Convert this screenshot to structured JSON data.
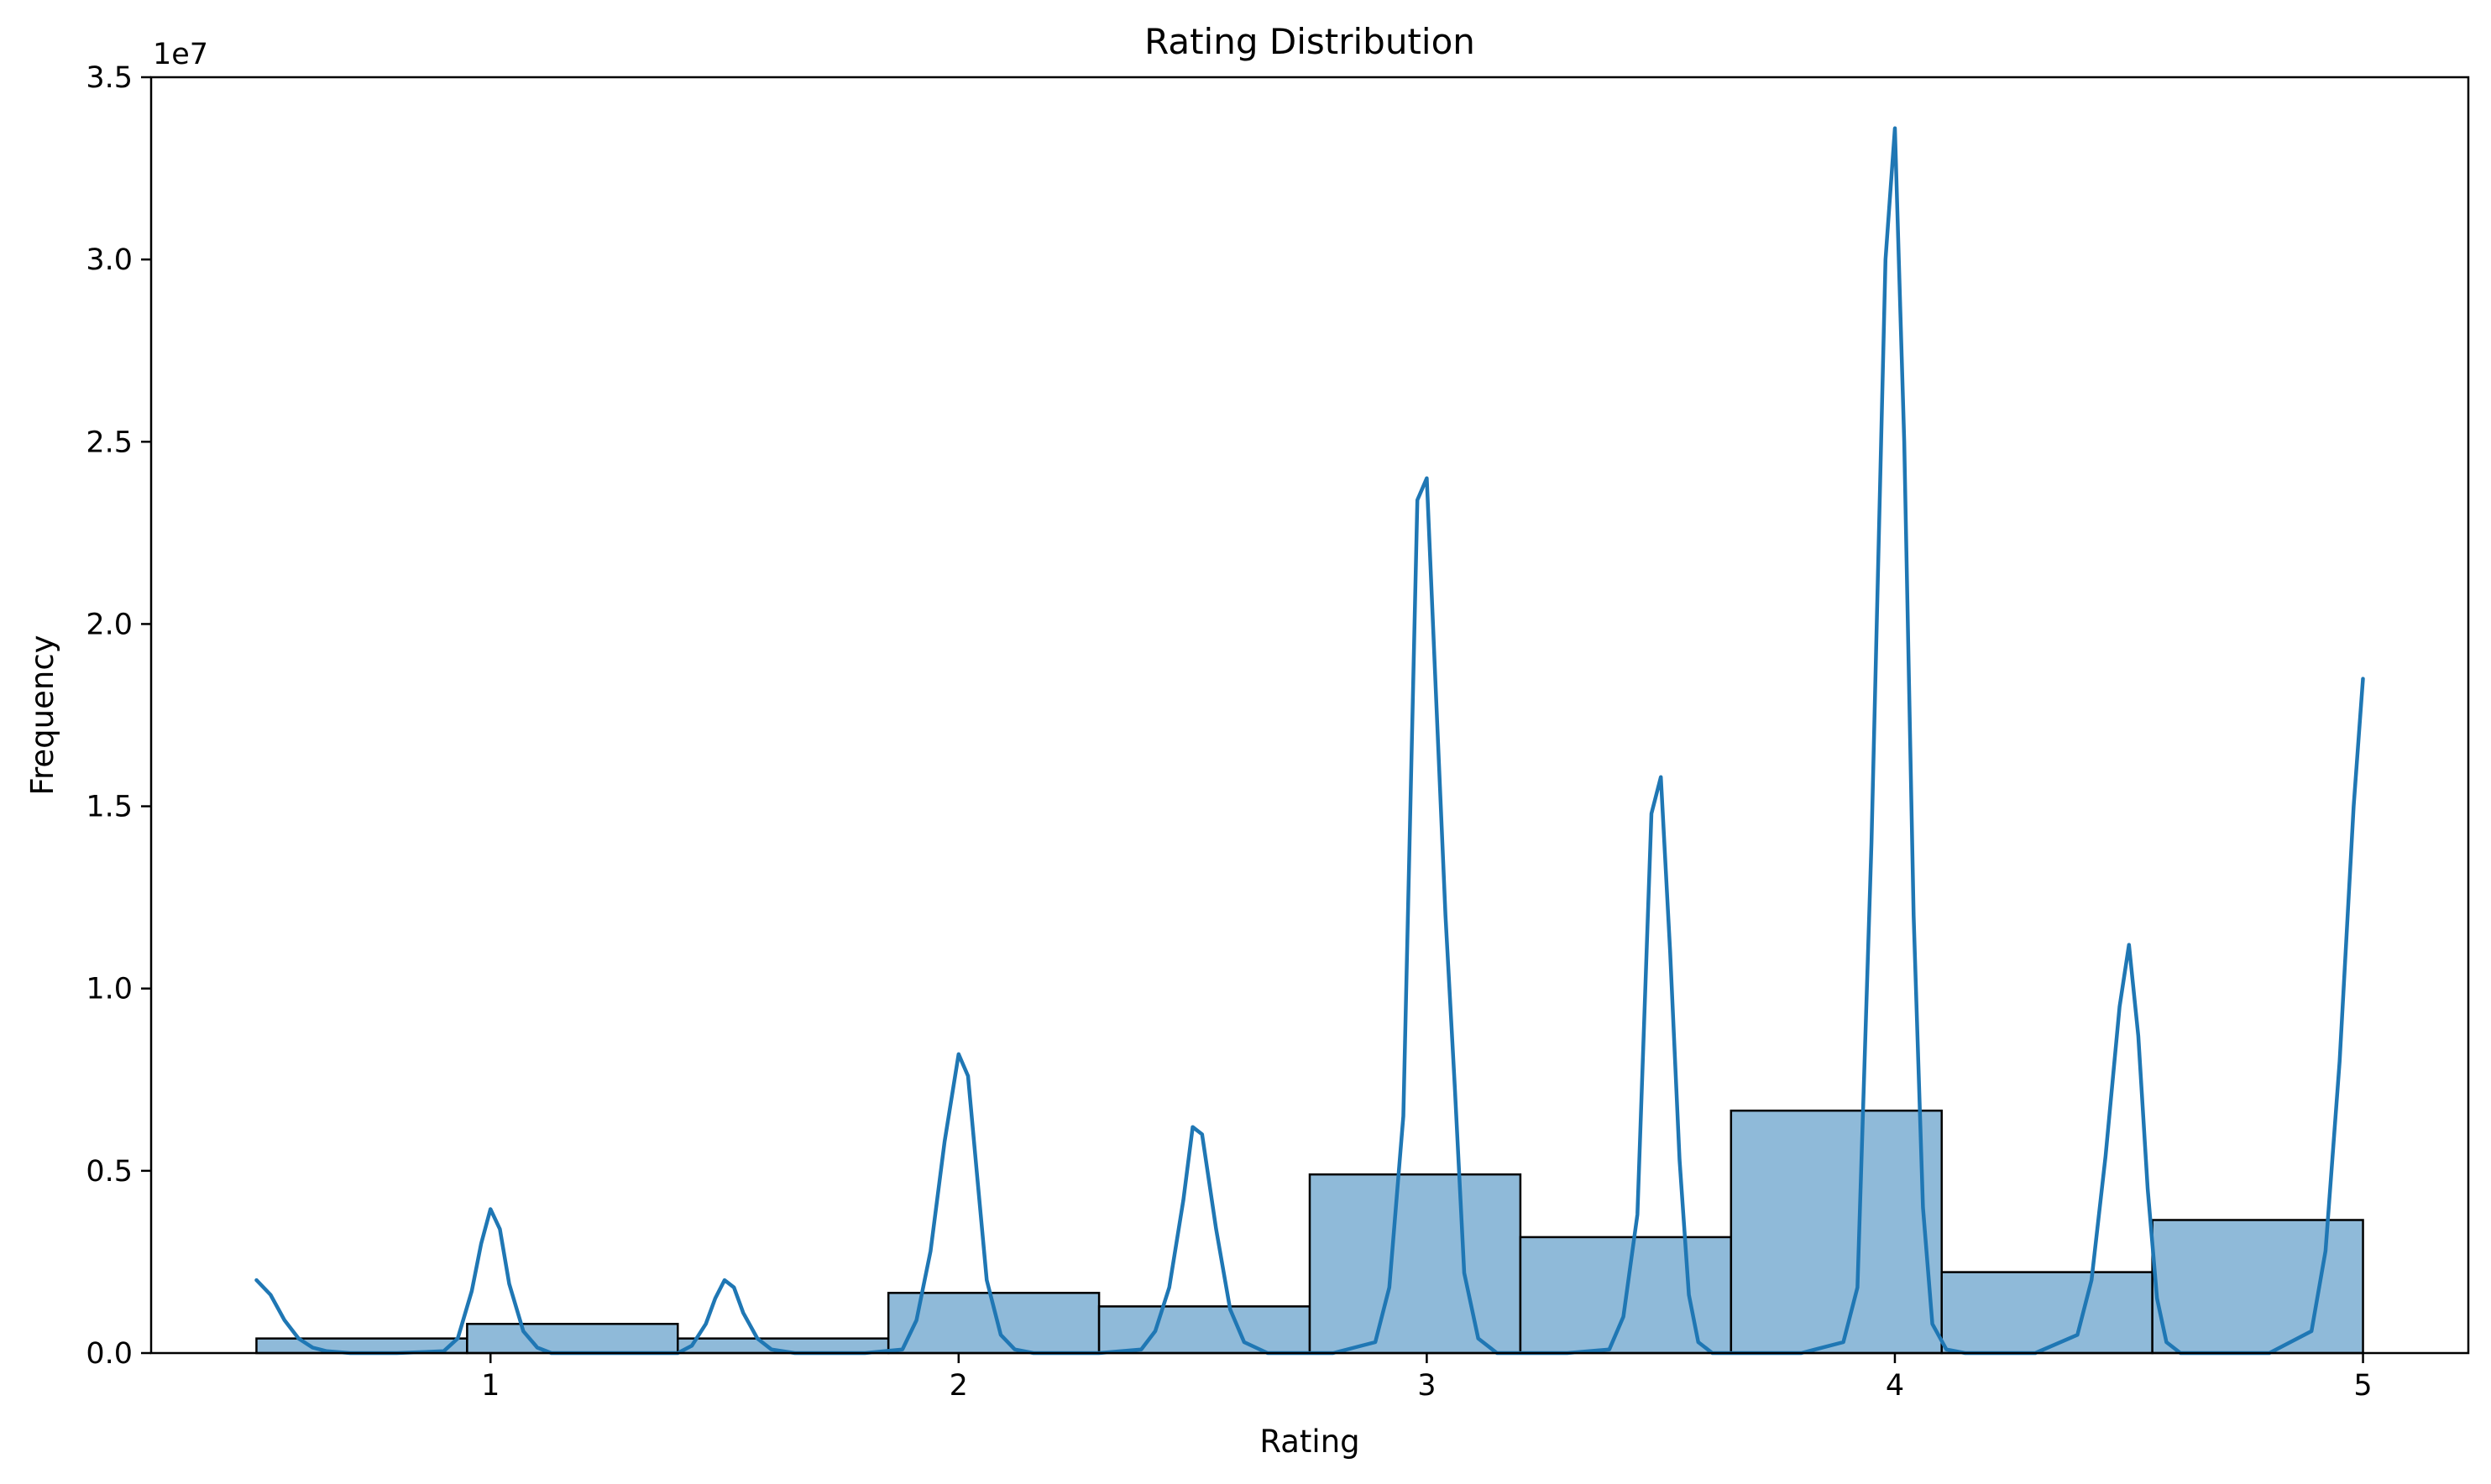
{
  "chart_data": {
    "type": "bar",
    "title": "Rating Distribution",
    "xlabel": "Rating",
    "ylabel": "Frequency",
    "y_offset_label": "1e7",
    "xlim": [
      0.275,
      5.225
    ],
    "ylim": [
      0,
      3.5
    ],
    "x_ticks": [
      1,
      2,
      3,
      4,
      5
    ],
    "x_tick_labels": [
      "1",
      "2",
      "3",
      "4",
      "5"
    ],
    "y_ticks": [
      0,
      0.5,
      1.0,
      1.5,
      2.0,
      2.5,
      3.0,
      3.5
    ],
    "y_tick_labels": [
      "0.0",
      "0.5",
      "1.0",
      "1.5",
      "2.0",
      "2.5",
      "3.0",
      "3.5"
    ],
    "grid": false,
    "bin_edges": [
      0.5,
      0.95,
      1.4,
      1.85,
      2.3,
      2.75,
      3.2,
      3.65,
      4.1,
      4.55,
      5.0
    ],
    "series": [
      {
        "type": "histogram",
        "values": [
          0.04,
          0.08,
          0.04,
          0.165,
          0.128,
          0.49,
          0.318,
          0.665,
          0.222,
          0.365
        ]
      },
      {
        "type": "kde-line",
        "x": [
          0.5,
          0.53,
          0.56,
          0.59,
          0.62,
          0.65,
          0.7,
          0.8,
          0.9,
          0.93,
          0.96,
          0.98,
          1.0,
          1.02,
          1.04,
          1.07,
          1.1,
          1.13,
          1.2,
          1.3,
          1.4,
          1.43,
          1.46,
          1.48,
          1.5,
          1.52,
          1.54,
          1.57,
          1.6,
          1.65,
          1.8,
          1.88,
          1.91,
          1.94,
          1.97,
          2.0,
          2.02,
          2.04,
          2.06,
          2.09,
          2.12,
          2.16,
          2.3,
          2.39,
          2.42,
          2.45,
          2.48,
          2.5,
          2.52,
          2.55,
          2.58,
          2.61,
          2.66,
          2.8,
          2.89,
          2.92,
          2.95,
          2.98,
          3.0,
          3.02,
          3.04,
          3.06,
          3.08,
          3.11,
          3.15,
          3.3,
          3.39,
          3.42,
          3.45,
          3.48,
          3.5,
          3.52,
          3.54,
          3.56,
          3.58,
          3.61,
          3.65,
          3.8,
          3.89,
          3.92,
          3.95,
          3.98,
          4.0,
          4.02,
          4.04,
          4.06,
          4.08,
          4.11,
          4.15,
          4.3,
          4.39,
          4.42,
          4.45,
          4.48,
          4.5,
          4.52,
          4.54,
          4.56,
          4.58,
          4.61,
          4.65,
          4.8,
          4.89,
          4.92,
          4.95,
          4.98,
          5.0
        ],
        "y": [
          0.2,
          0.16,
          0.09,
          0.04,
          0.015,
          0.005,
          0.0,
          0.0,
          0.005,
          0.04,
          0.17,
          0.3,
          0.395,
          0.34,
          0.19,
          0.06,
          0.015,
          0.0,
          0.0,
          0.0,
          0.0,
          0.02,
          0.08,
          0.15,
          0.2,
          0.18,
          0.11,
          0.04,
          0.01,
          0.0,
          0.0,
          0.01,
          0.09,
          0.28,
          0.58,
          0.82,
          0.76,
          0.48,
          0.2,
          0.05,
          0.01,
          0.0,
          0.0,
          0.01,
          0.06,
          0.18,
          0.42,
          0.62,
          0.6,
          0.34,
          0.12,
          0.03,
          0.0,
          0.0,
          0.03,
          0.18,
          0.65,
          2.34,
          2.4,
          1.8,
          1.2,
          0.73,
          0.22,
          0.04,
          0.0,
          0.0,
          0.01,
          0.1,
          0.38,
          1.48,
          1.58,
          1.1,
          0.53,
          0.16,
          0.03,
          0.0,
          0.0,
          0.0,
          0.03,
          0.18,
          1.4,
          3.0,
          3.36,
          2.5,
          1.2,
          0.4,
          0.08,
          0.01,
          0.0,
          0.0,
          0.05,
          0.2,
          0.54,
          0.95,
          1.12,
          0.87,
          0.45,
          0.15,
          0.03,
          0.0,
          0.0,
          0.0,
          0.06,
          0.28,
          0.8,
          1.5,
          1.85
        ]
      }
    ],
    "colors": {
      "bar_fill": "#8fbad9",
      "bar_edge": "#000000",
      "line": "#1f77b4",
      "axes": "#000000"
    }
  }
}
